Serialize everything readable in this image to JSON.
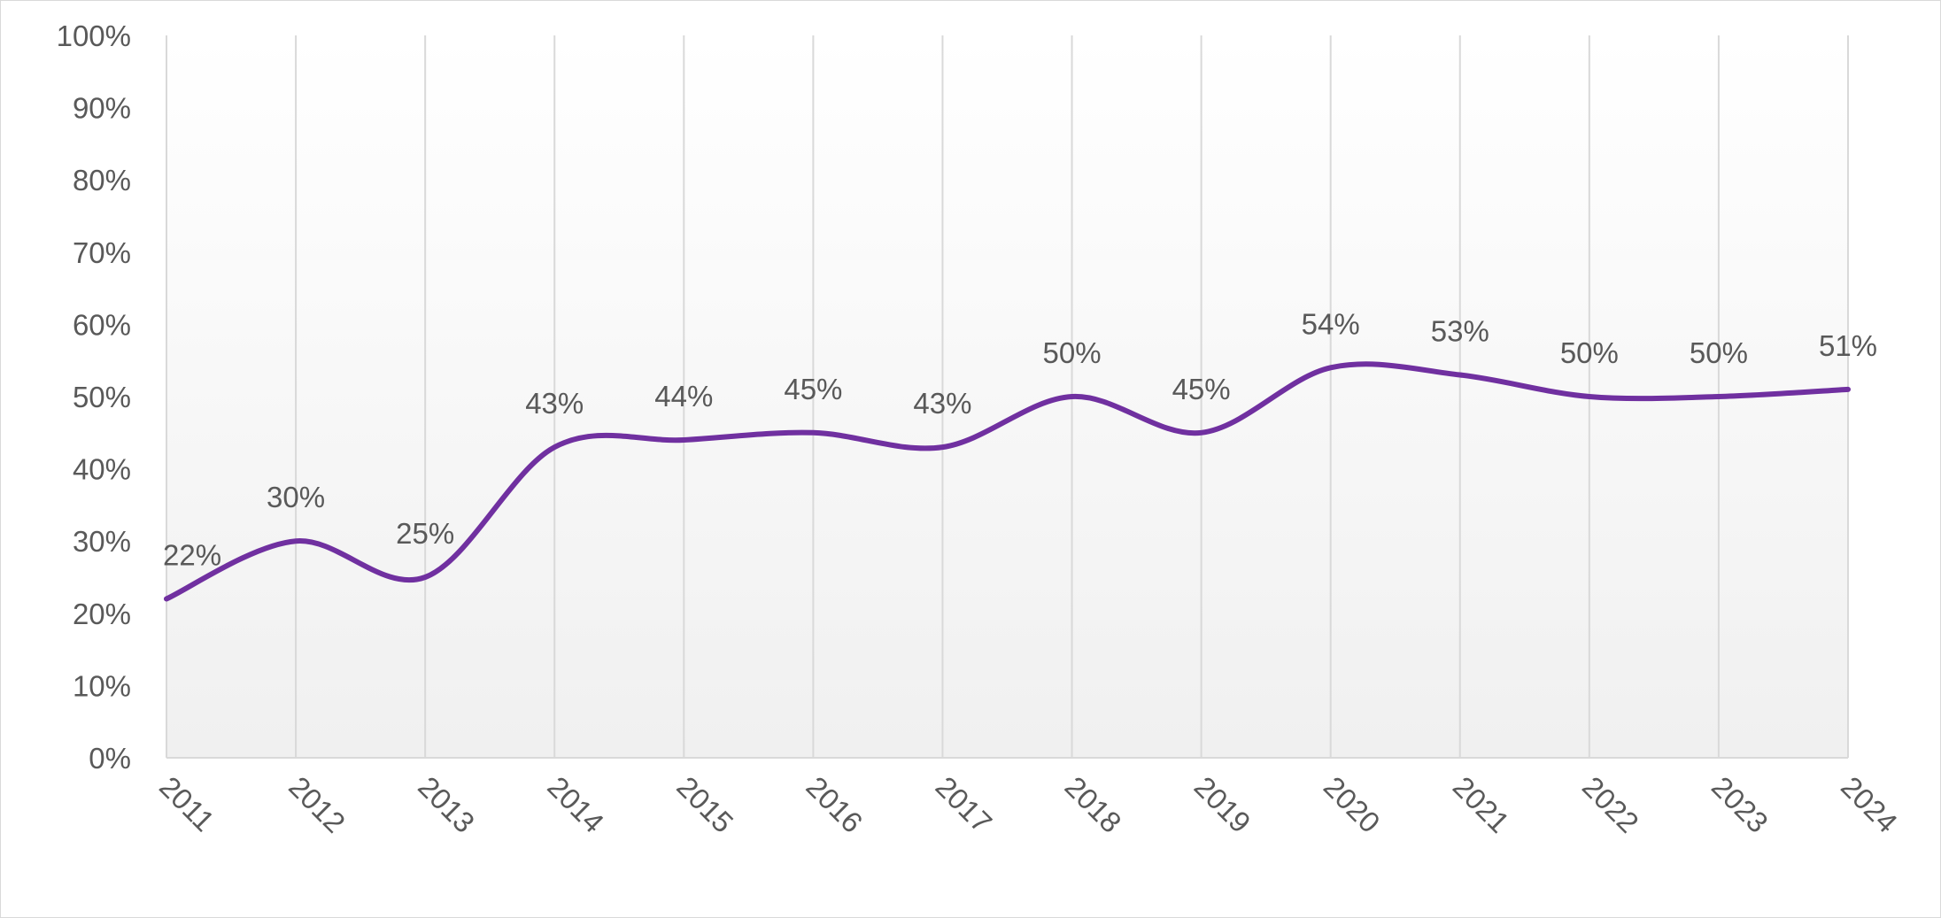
{
  "chart_data": {
    "type": "line",
    "title": "",
    "xlabel": "",
    "ylabel": "",
    "categories": [
      "2011",
      "2012",
      "2013",
      "2014",
      "2015",
      "2016",
      "2017",
      "2018",
      "2019",
      "2020",
      "2021",
      "2022",
      "2023",
      "2024"
    ],
    "series": [
      {
        "values": [
          22,
          30,
          25,
          43,
          44,
          45,
          43,
          50,
          45,
          54,
          53,
          50,
          50,
          51
        ],
        "data_labels": [
          "22%",
          "30%",
          "25%",
          "43%",
          "44%",
          "45%",
          "43%",
          "50%",
          "45%",
          "54%",
          "53%",
          "50%",
          "50%",
          "51%"
        ],
        "color": "#7030a0",
        "smooth": true
      }
    ],
    "ylim": [
      0,
      100
    ],
    "y_ticks": [
      0,
      10,
      20,
      30,
      40,
      50,
      60,
      70,
      80,
      90,
      100
    ],
    "y_tick_labels": [
      "0%",
      "10%",
      "20%",
      "30%",
      "40%",
      "50%",
      "60%",
      "70%",
      "80%",
      "90%",
      "100%"
    ],
    "grid": "vertical",
    "legend": "none",
    "colors": {
      "line": "#7030a0",
      "gridline": "#d9d9d9",
      "text": "#595959",
      "plot_gradient_top": "#ffffff",
      "plot_gradient_bottom": "#f0f0f0"
    }
  }
}
